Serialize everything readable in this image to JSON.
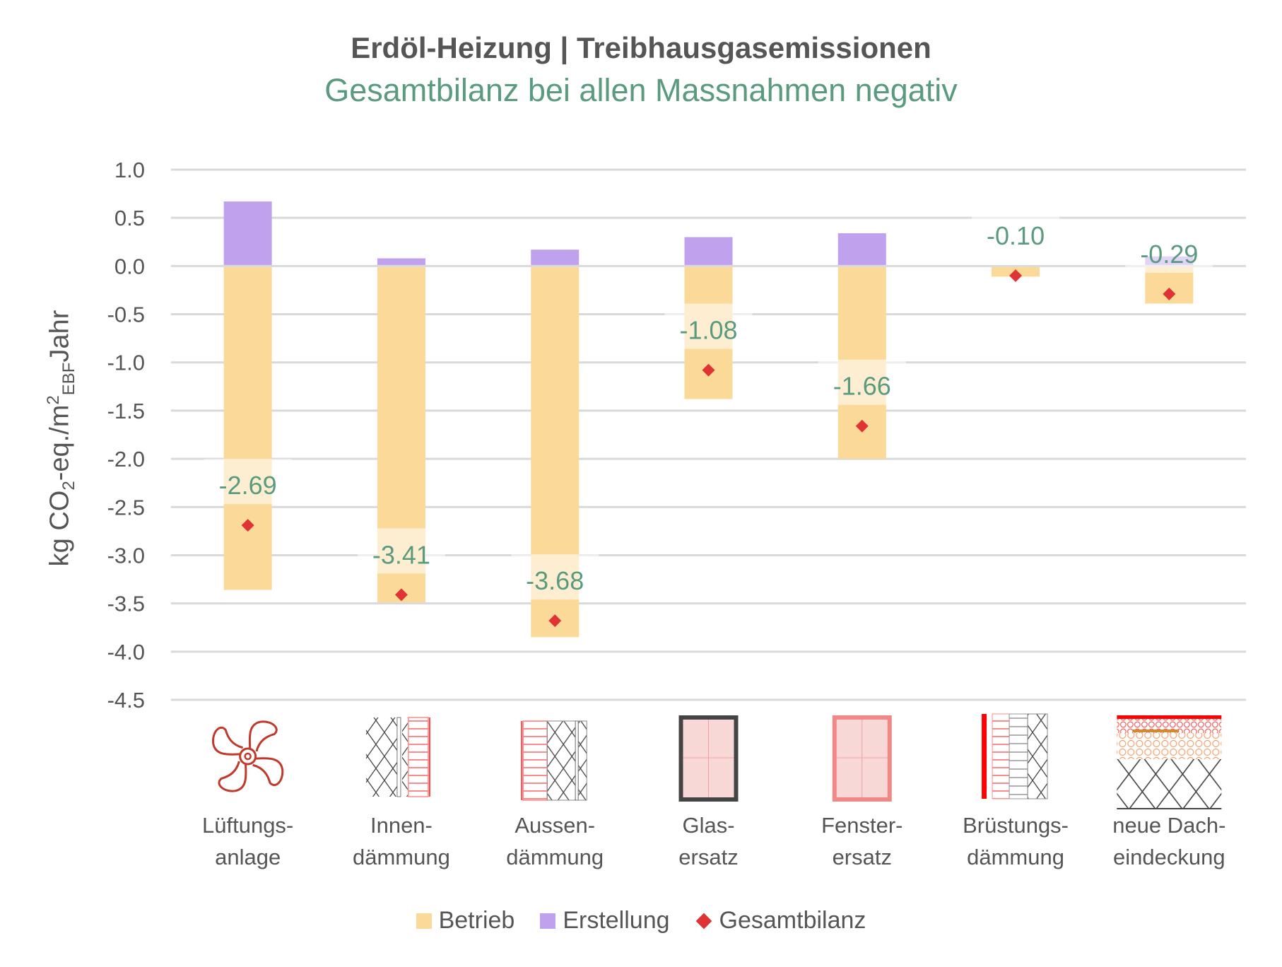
{
  "title": "Erdöl-Heizung | Treibhausgasemissionen",
  "subtitle": "Gesamtbilanz bei allen Massnahmen negativ",
  "chart_data": {
    "type": "bar",
    "stacked": true,
    "categories": [
      "Lüftungs-\nanlage",
      "Innen-\ndämmung",
      "Aussen-\ndämmung",
      "Glas-\nersatz",
      "Fenster-\nersatz",
      "Brüstungs-\ndämmung",
      "neue Dach-\neindeckung"
    ],
    "category_icons": [
      "fan-icon",
      "interior-insulation-icon",
      "exterior-insulation-icon",
      "glass-replacement-icon",
      "window-replacement-icon",
      "parapet-insulation-icon",
      "roof-covering-icon"
    ],
    "series": [
      {
        "name": "Betrieb",
        "type": "bar",
        "color": "#fbd999",
        "values": [
          -3.36,
          -3.49,
          -3.85,
          -1.38,
          -2.0,
          -0.11,
          -0.39
        ]
      },
      {
        "name": "Erstellung",
        "type": "bar",
        "color": "#bfa1ee",
        "values": [
          0.67,
          0.08,
          0.17,
          0.3,
          0.34,
          0.01,
          0.1
        ]
      },
      {
        "name": "Gesamtbilanz",
        "type": "scatter",
        "marker": "diamond",
        "color": "#e03434",
        "values": [
          -2.69,
          -3.41,
          -3.68,
          -1.08,
          -1.66,
          -0.1,
          -0.29
        ]
      }
    ],
    "data_labels": [
      "-2.69",
      "-3.41",
      "-3.68",
      "-1.08",
      "-1.66",
      "-0.10",
      "-0.29"
    ],
    "data_label_color": "#5a9a7e",
    "ylabel": "kg CO2-eq./m2EBFJahr",
    "ylabel_parts": {
      "a": "kg CO",
      "b": "2",
      "c": "-eq./m",
      "d": "2",
      "e": "EBF",
      "f": "Jahr"
    },
    "ylim": [
      -4.5,
      1.0
    ],
    "yticks": [
      "1.0",
      "0.5",
      "0.0",
      "-0.5",
      "-1.0",
      "-1.5",
      "-2.0",
      "-2.5",
      "-3.0",
      "-3.5",
      "-4.0",
      "-4.5"
    ],
    "ytick_values": [
      1.0,
      0.5,
      0.0,
      -0.5,
      -1.0,
      -1.5,
      -2.0,
      -2.5,
      -3.0,
      -3.5,
      -4.0,
      -4.5
    ],
    "grid": true,
    "legend": "bottom"
  }
}
